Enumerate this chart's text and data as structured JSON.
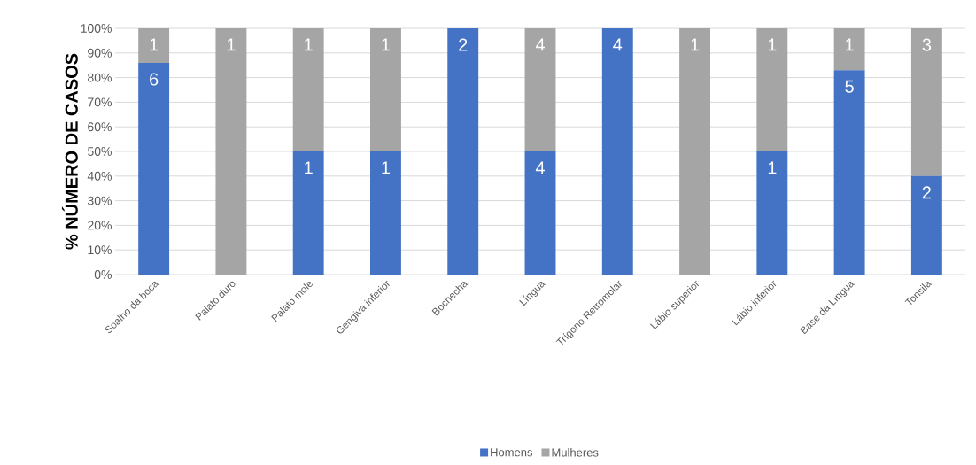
{
  "chart_data": {
    "type": "bar",
    "stacked": true,
    "ylabel": "% NÚMERO DE CASOS",
    "categories": [
      "Soalho da boca",
      "Palato duro",
      "Palato mole",
      "Gengiva inferior",
      "Bochecha",
      "Língua",
      "Trígono Retromolar",
      "Lábio superior",
      "Lábio inferior",
      "Base da Língua",
      "Tonsila"
    ],
    "series": [
      {
        "name": "Homens",
        "color": "#4472c4",
        "values": [
          86,
          0,
          50,
          50,
          100,
          50,
          100,
          0,
          50,
          83,
          40
        ]
      },
      {
        "name": "Mulheres",
        "color": "#a5a5a5",
        "values": [
          14,
          100,
          50,
          50,
          0,
          50,
          0,
          100,
          50,
          17,
          60
        ]
      }
    ],
    "annotations": [
      {
        "text": "6",
        "x": "Soalho da boca",
        "y": 86
      },
      {
        "text": "1",
        "x": "Soalho da boca",
        "y": 100
      },
      {
        "text": "1",
        "x": "Palato duro",
        "y": 100
      },
      {
        "text": "1",
        "x": "Palato mole",
        "y": 50
      },
      {
        "text": "1",
        "x": "Palato mole",
        "y": 100
      },
      {
        "text": "1",
        "x": "Gengiva inferior",
        "y": 50
      },
      {
        "text": "1",
        "x": "Gengiva inferior",
        "y": 100
      },
      {
        "text": "2",
        "x": "Bochecha",
        "y": 100
      },
      {
        "text": "4",
        "x": "Língua",
        "y": 50
      },
      {
        "text": "4",
        "x": "Língua",
        "y": 100
      },
      {
        "text": "4",
        "x": "Trígono Retromolar",
        "y": 100
      },
      {
        "text": "1",
        "x": "Lábio superior",
        "y": 100
      },
      {
        "text": "1",
        "x": "Lábio inferior",
        "y": 50
      },
      {
        "text": "1",
        "x": "Lábio inferior",
        "y": 100
      },
      {
        "text": "5",
        "x": "Base da Língua",
        "y": 83
      },
      {
        "text": "1",
        "x": "Base da Língua",
        "y": 100
      },
      {
        "text": "2",
        "x": "Tonsila",
        "y": 40
      },
      {
        "text": "3",
        "x": "Tonsila",
        "y": 100
      }
    ],
    "ylim": [
      0,
      100
    ],
    "yticks": [
      {
        "value": 0,
        "label": "0%"
      },
      {
        "value": 10,
        "label": "10%"
      },
      {
        "value": 20,
        "label": "20%"
      },
      {
        "value": 30,
        "label": "30%"
      },
      {
        "value": 40,
        "label": "40%"
      },
      {
        "value": 50,
        "label": "50%"
      },
      {
        "value": 60,
        "label": "60%"
      },
      {
        "value": 70,
        "label": "70%"
      },
      {
        "value": 80,
        "label": "80%"
      },
      {
        "value": 90,
        "label": "90%"
      },
      {
        "value": 100,
        "label": "100%"
      }
    ],
    "grid": "y",
    "legend": "bottom"
  }
}
